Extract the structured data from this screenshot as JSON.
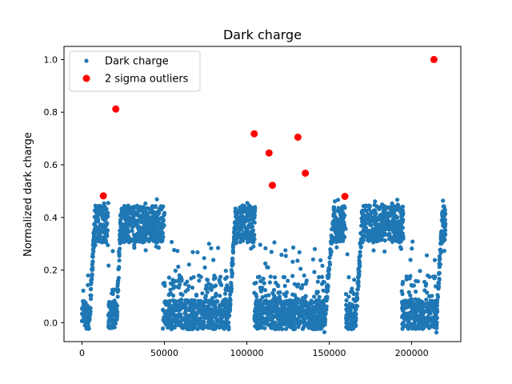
{
  "chart_data": {
    "type": "scatter",
    "title": "Dark charge",
    "xlabel": "",
    "ylabel": "Normalized dark charge",
    "xlim": [
      -10900,
      229800
    ],
    "ylim": [
      -0.072,
      1.05
    ],
    "xticks": [
      0,
      50000,
      100000,
      150000,
      200000
    ],
    "xtick_labels": [
      "0",
      "50000",
      "100000",
      "150000",
      "200000"
    ],
    "yticks": [
      0.0,
      0.2,
      0.4,
      0.6,
      0.8,
      1.0
    ],
    "ytick_labels": [
      "0.0",
      "0.2",
      "0.4",
      "0.6",
      "0.8",
      "1.0"
    ],
    "grid": false,
    "legend": {
      "placement": "top-left",
      "entries": [
        "Dark charge",
        "2 sigma outliers"
      ]
    },
    "colors": {
      "dark_charge": "#1f77b4",
      "outliers": "#ff0000"
    },
    "series": [
      {
        "name": "Dark charge",
        "marker": "small-dot",
        "segments": [
          {
            "x": [
              0,
              4500
            ],
            "kind": "low"
          },
          {
            "x": [
              4500,
              8000
            ],
            "kind": "rise",
            "y": [
              0.0,
              0.42
            ]
          },
          {
            "x": [
              8000,
              16000
            ],
            "kind": "high"
          },
          {
            "x": [
              16000,
              21000
            ],
            "kind": "low"
          },
          {
            "x": [
              21000,
              23500
            ],
            "kind": "rise",
            "y": [
              0.0,
              0.4
            ]
          },
          {
            "x": [
              23500,
              50000
            ],
            "kind": "high"
          },
          {
            "x": [
              49000,
              89000
            ],
            "kind": "low"
          },
          {
            "x": [
              89000,
              93000
            ],
            "kind": "rise",
            "y": [
              0.0,
              0.4
            ]
          },
          {
            "x": [
              93000,
              105000
            ],
            "kind": "high"
          },
          {
            "x": [
              104500,
              147000
            ],
            "kind": "low"
          },
          {
            "x": [
              147000,
              153000
            ],
            "kind": "rise",
            "y": [
              0.0,
              0.42
            ]
          },
          {
            "x": [
              153000,
              160000
            ],
            "kind": "high"
          },
          {
            "x": [
              160000,
              166000
            ],
            "kind": "low"
          },
          {
            "x": [
              166000,
              170000
            ],
            "kind": "rise",
            "y": [
              0.0,
              0.4
            ]
          },
          {
            "x": [
              170000,
              195000
            ],
            "kind": "high"
          },
          {
            "x": [
              194000,
              215000
            ],
            "kind": "low"
          },
          {
            "x": [
              215000,
              219000
            ],
            "kind": "rise",
            "y": [
              0.0,
              0.44
            ]
          },
          {
            "x": [
              219000,
              220500
            ],
            "kind": "high"
          }
        ]
      },
      {
        "name": "2 sigma outliers",
        "marker": "red-circle",
        "x": [
          13000,
          20500,
          104500,
          113500,
          115500,
          131000,
          135500,
          159500,
          213500
        ],
        "y": [
          0.482,
          0.812,
          0.718,
          0.645,
          0.522,
          0.705,
          0.568,
          0.48,
          1.0
        ]
      }
    ]
  }
}
